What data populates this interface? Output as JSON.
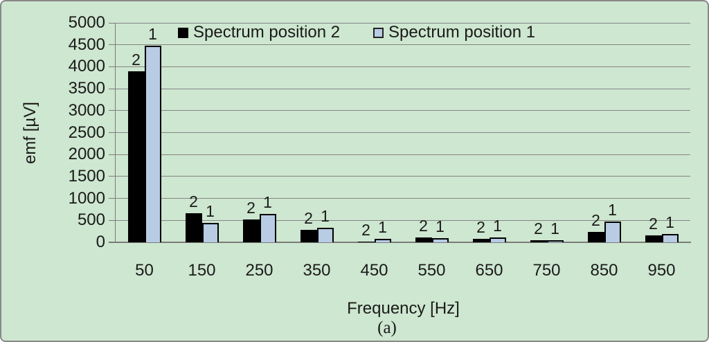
{
  "chart_data": {
    "type": "bar",
    "title": "",
    "categories": [
      "50",
      "150",
      "250",
      "350",
      "450",
      "550",
      "650",
      "750",
      "850",
      "950"
    ],
    "series": [
      {
        "name": "Spectrum position 2",
        "point_label": "2",
        "color": "#000000",
        "outlined": false,
        "values": [
          3900,
          655,
          525,
          280,
          10,
          105,
          80,
          55,
          240,
          160
        ]
      },
      {
        "name": "Spectrum position 1",
        "point_label": "1",
        "color": "#b8cce4",
        "outlined": true,
        "values": [
          4475,
          435,
          640,
          330,
          80,
          95,
          105,
          50,
          480,
          195
        ]
      }
    ],
    "xlabel": "Frequency [Hz]",
    "ylabel": "emf [µV]",
    "caption": "(a)",
    "ylim": [
      0,
      5000
    ],
    "yticks": [
      0,
      500,
      1000,
      1500,
      2000,
      2500,
      3000,
      3500,
      4000,
      4500,
      5000
    ],
    "grid": true,
    "legend_position": "top-inside"
  },
  "colors": {
    "background": "#cee7d0",
    "border": "#888888",
    "gridline": "#848484",
    "text": "#1a1a1a",
    "series2": "#000000",
    "series1": "#b8cce4"
  }
}
